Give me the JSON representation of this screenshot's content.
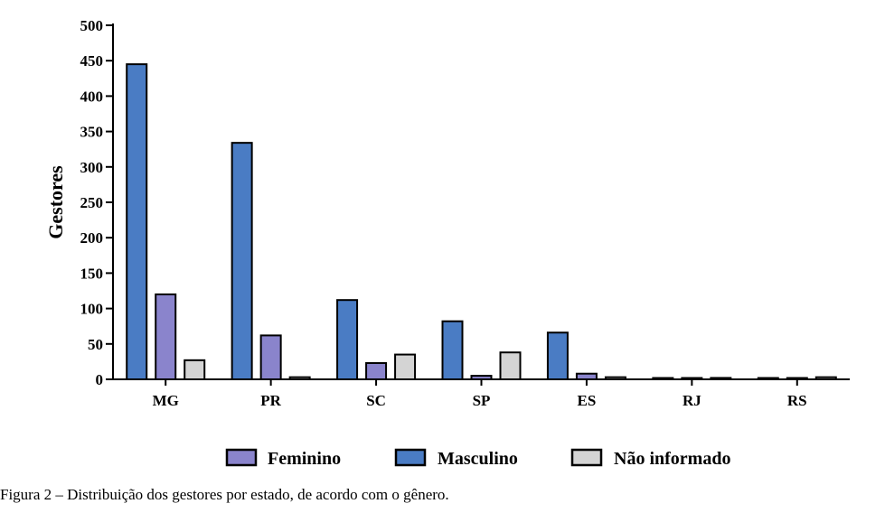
{
  "chart_data": {
    "type": "bar",
    "ylabel": "Gestores",
    "xlabel": "",
    "ylim": [
      0,
      500
    ],
    "yticks": [
      0,
      50,
      100,
      150,
      200,
      250,
      300,
      350,
      400,
      450,
      500
    ],
    "categories": [
      "MG",
      "PR",
      "SC",
      "SP",
      "ES",
      "RJ",
      "RS"
    ],
    "series": [
      {
        "name": "Masculino",
        "color": "#4a7cc4",
        "values": [
          445,
          334,
          112,
          82,
          66,
          1,
          0
        ]
      },
      {
        "name": "Feminino",
        "color": "#8a84cc",
        "values": [
          120,
          62,
          23,
          5,
          8,
          1,
          0
        ]
      },
      {
        "name": "Não informado",
        "color": "#d4d4d4",
        "values": [
          27,
          3,
          35,
          38,
          3,
          2,
          3
        ]
      }
    ],
    "legend": {
      "position": "bottom",
      "order": [
        "Feminino",
        "Masculino",
        "Não informado"
      ]
    },
    "grid": false
  },
  "caption": "Figura 2 – Distribuição dos gestores por estado, de acordo com o gênero."
}
